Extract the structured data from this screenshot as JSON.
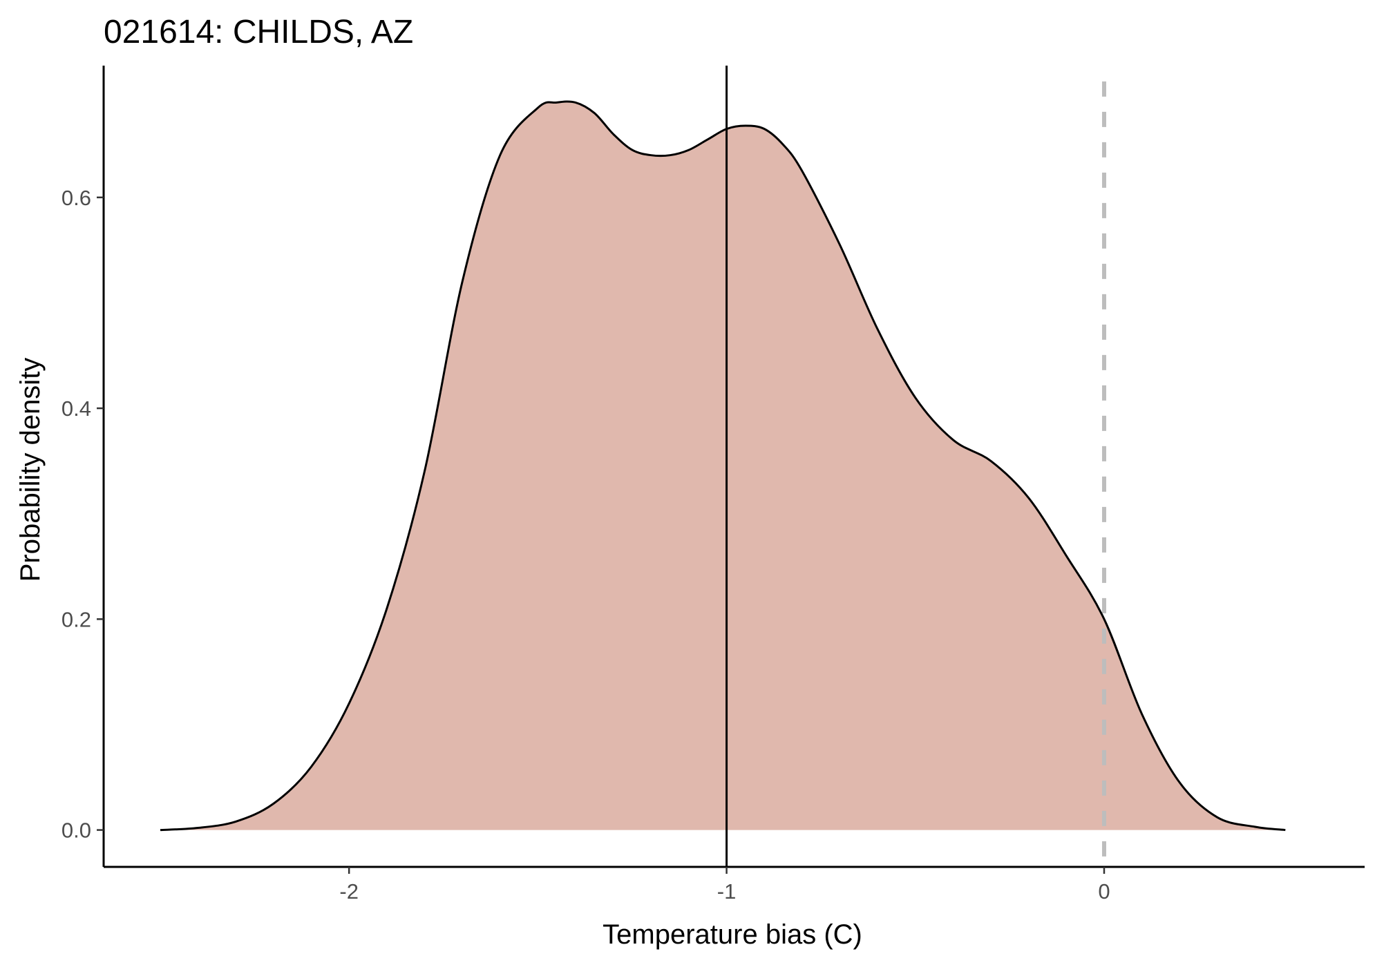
{
  "chart_data": {
    "type": "area",
    "title": "021614: CHILDS, AZ",
    "xlabel": "Temperature bias (C)",
    "ylabel": "Probability density",
    "xlim": [
      -2.65,
      0.69
    ],
    "ylim": [
      -0.035,
      0.725
    ],
    "x_ticks": [
      -2,
      -1,
      0
    ],
    "x_tick_labels": [
      "-2",
      "-1",
      "0"
    ],
    "y_ticks": [
      0.0,
      0.2,
      0.4,
      0.6
    ],
    "y_tick_labels": [
      "0.0",
      "0.2",
      "0.4",
      "0.6"
    ],
    "grid": false,
    "legend": "none",
    "fill_color": "#e0b8ad",
    "line_color": "#000000",
    "series": [
      {
        "x": [
          -2.5,
          -2.4,
          -2.3,
          -2.2,
          -2.1,
          -2.0,
          -1.9,
          -1.8,
          -1.7,
          -1.6,
          -1.5,
          -1.45,
          -1.4,
          -1.35,
          -1.3,
          -1.25,
          -1.2,
          -1.15,
          -1.1,
          -1.05,
          -1.0,
          -0.95,
          -0.9,
          -0.85,
          -0.8,
          -0.7,
          -0.6,
          -0.5,
          -0.4,
          -0.3,
          -0.2,
          -0.1,
          0.0,
          0.1,
          0.2,
          0.3,
          0.4,
          0.48
        ],
        "y": [
          0.0,
          0.002,
          0.008,
          0.025,
          0.06,
          0.12,
          0.21,
          0.34,
          0.52,
          0.64,
          0.685,
          0.69,
          0.69,
          0.68,
          0.66,
          0.645,
          0.64,
          0.64,
          0.645,
          0.655,
          0.665,
          0.668,
          0.665,
          0.65,
          0.625,
          0.555,
          0.475,
          0.41,
          0.37,
          0.35,
          0.315,
          0.26,
          0.2,
          0.11,
          0.045,
          0.012,
          0.003,
          0.0
        ]
      }
    ],
    "reference_lines": [
      {
        "axis": "x",
        "value": -1.0,
        "style": "solid",
        "color": "#000000"
      },
      {
        "axis": "x",
        "value": 0.0,
        "style": "dashed",
        "color": "#bdbdbd"
      }
    ]
  }
}
